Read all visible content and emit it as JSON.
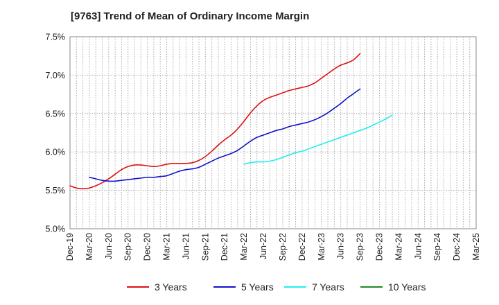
{
  "chart_data": {
    "type": "line",
    "title": "[9763]  Trend of Mean of Ordinary Income Margin",
    "xlabel": "",
    "ylabel": "",
    "x_tick_labels": [
      "Dec-19",
      "Mar-20",
      "Jun-20",
      "Sep-20",
      "Dec-20",
      "Mar-21",
      "Jun-21",
      "Sep-21",
      "Dec-21",
      "Mar-22",
      "Jun-22",
      "Sep-22",
      "Dec-22",
      "Mar-23",
      "Jun-23",
      "Sep-23",
      "Dec-23",
      "Mar-24",
      "Jun-24",
      "Sep-24",
      "Dec-24",
      "Mar-25"
    ],
    "y_tick_labels": [
      "5.0%",
      "5.5%",
      "6.0%",
      "6.5%",
      "7.0%",
      "7.5%"
    ],
    "ylim": [
      5.0,
      7.5
    ],
    "grid": true,
    "legend_position": "bottom",
    "series": [
      {
        "name": "3 Years",
        "color": "#dd1111",
        "start": "Dec-19",
        "values": [
          5.56,
          5.53,
          5.52,
          5.53,
          5.56,
          5.6,
          5.65,
          5.71,
          5.77,
          5.81,
          5.83,
          5.83,
          5.82,
          5.81,
          5.82,
          5.84,
          5.85,
          5.85,
          5.85,
          5.86,
          5.89,
          5.94,
          6.01,
          6.09,
          6.16,
          6.22,
          6.3,
          6.4,
          6.51,
          6.6,
          6.67,
          6.71,
          6.74,
          6.77,
          6.8,
          6.82,
          6.84,
          6.86,
          6.9,
          6.96,
          7.02,
          7.08,
          7.13,
          7.16,
          7.2,
          7.28
        ]
      },
      {
        "name": "5 Years",
        "color": "#1111cc",
        "start": "Mar-20",
        "values": [
          5.67,
          5.65,
          5.63,
          5.62,
          5.62,
          5.63,
          5.64,
          5.65,
          5.66,
          5.67,
          5.67,
          5.68,
          5.69,
          5.72,
          5.75,
          5.77,
          5.78,
          5.8,
          5.84,
          5.88,
          5.92,
          5.95,
          5.98,
          6.02,
          6.08,
          6.14,
          6.19,
          6.22,
          6.25,
          6.28,
          6.3,
          6.33,
          6.35,
          6.37,
          6.39,
          6.42,
          6.46,
          6.51,
          6.57,
          6.63,
          6.7,
          6.76,
          6.82
        ]
      },
      {
        "name": "7 Years",
        "color": "#22eeee",
        "start": "Mar-22",
        "values": [
          5.84,
          5.86,
          5.87,
          5.87,
          5.88,
          5.9,
          5.93,
          5.96,
          5.99,
          6.01,
          6.04,
          6.07,
          6.1,
          6.13,
          6.16,
          6.19,
          6.22,
          6.25,
          6.28,
          6.31,
          6.35,
          6.39,
          6.43,
          6.48
        ]
      },
      {
        "name": "10 Years",
        "color": "#228822",
        "start": "Dec-24",
        "values": []
      }
    ]
  }
}
